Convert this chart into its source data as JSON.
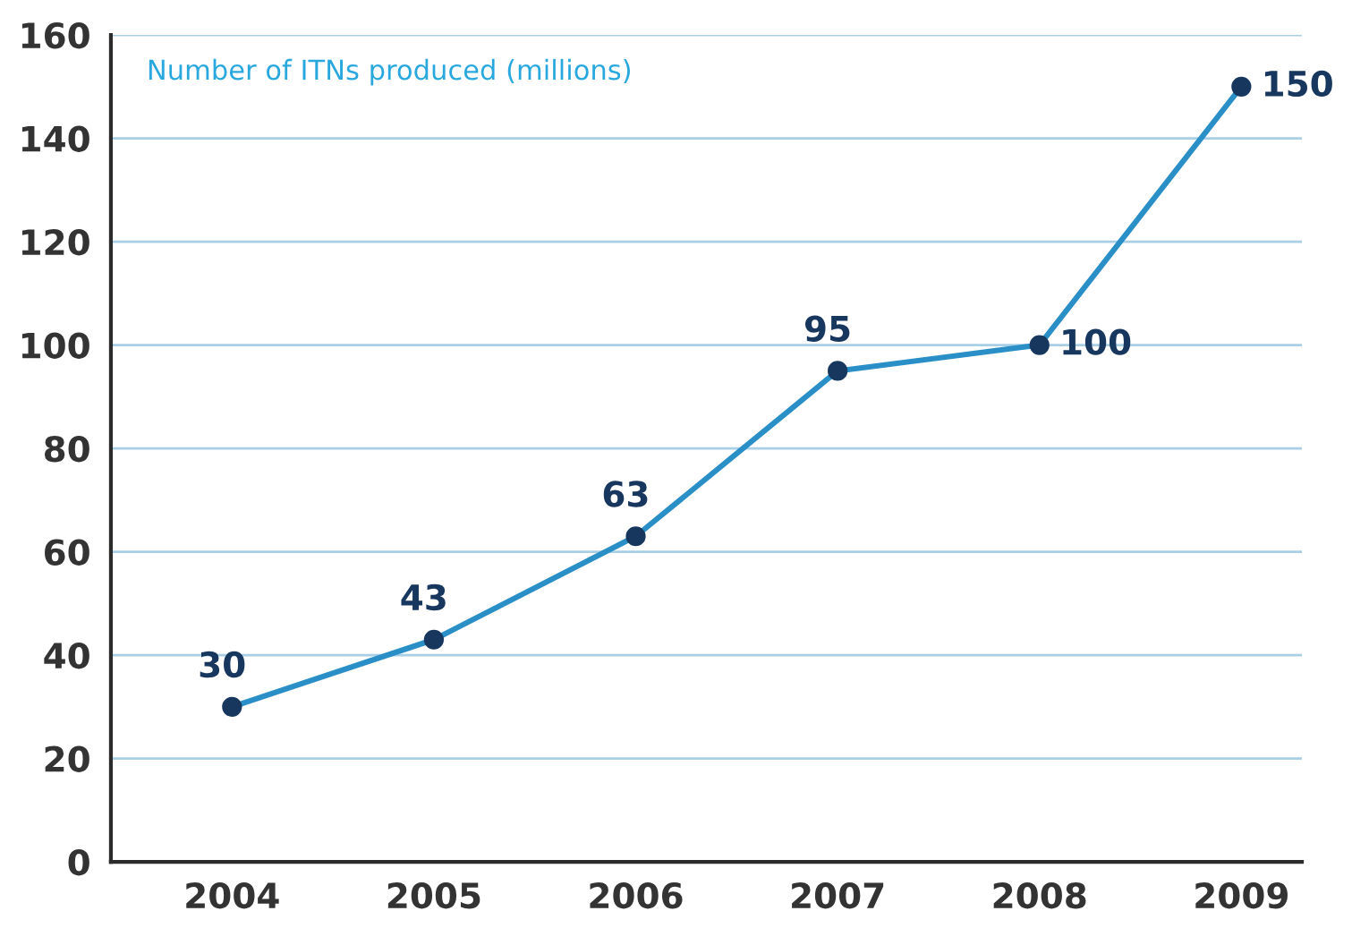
{
  "chart_data": {
    "type": "line",
    "title": "Number of ITNs produced (millions)",
    "categories": [
      "2004",
      "2005",
      "2006",
      "2007",
      "2008",
      "2009"
    ],
    "values": [
      30,
      43,
      63,
      95,
      100,
      150
    ],
    "color": "#2a8fc7",
    "marker": "circle",
    "line_style": "solid",
    "data_labels": true,
    "ylim": [
      0,
      160
    ],
    "yticks": [
      0,
      20,
      40,
      60,
      80,
      100,
      120,
      140,
      160
    ],
    "grid": "y",
    "legend": false
  }
}
